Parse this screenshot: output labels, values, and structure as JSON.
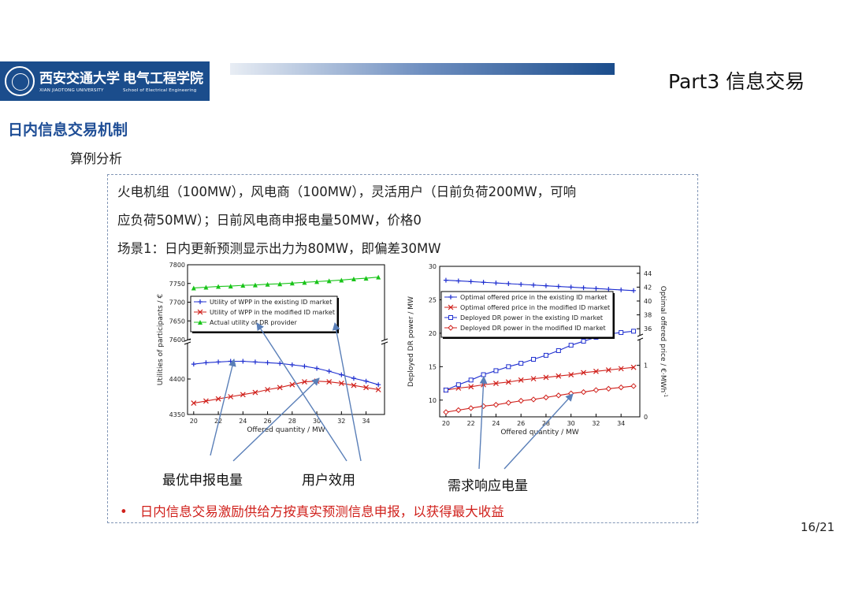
{
  "header": {
    "logo": {
      "school_cn": "西安交通大学",
      "school_en": "XIAN JIAOTONG UNIVERSITY",
      "college_cn": "电气工程学院",
      "college_en": "School of Electrical Engineering"
    },
    "part_title": "Part3 信息交易"
  },
  "section_title": "日内信息交易机制",
  "subtitle": "算例分析",
  "description": {
    "line1": "火电机组（100MW），风电商（100MW），灵活用户（日前负荷200MW，可响",
    "line2": "应负荷50MW）；日前风电商申报电量50MW，价格0",
    "line3": "场景1：日内更新预测显示出力为80MW，即偏差30MW"
  },
  "callouts": {
    "optimal_bid": "最优申报电量",
    "user_utility": "用户效用",
    "dr_quantity": "需求响应电量"
  },
  "bullet": "日内信息交易激励供给方按真实预测信息申报，以获得最大收益",
  "page_number": "16/21",
  "colors": {
    "brand_blue": "#1b4d8c",
    "section_blue": "#1f4e96",
    "bullet_red": "#d0201b",
    "frame_border": "#8296b6"
  },
  "chart_data": [
    {
      "type": "line",
      "xlabel": "Offered quantity / MW",
      "ylabel": "Utilities of participants / €",
      "x": [
        20,
        21,
        22,
        23,
        24,
        25,
        26,
        27,
        28,
        29,
        30,
        31,
        32,
        33,
        34,
        35
      ],
      "xticks": [
        20,
        22,
        24,
        26,
        28,
        30,
        32,
        34
      ],
      "upper_axis": {
        "ylim": [
          7600,
          7800
        ],
        "ticks": [
          7600,
          7650,
          7700,
          7750,
          7800
        ]
      },
      "lower_axis": {
        "ylim": [
          4350,
          4450
        ],
        "ticks": [
          4350,
          4400
        ]
      },
      "legend_position": "top-left",
      "series": [
        {
          "name": "Utility of WPP in the existing ID market",
          "color": "#1f2fd0",
          "marker": "plus",
          "axis": "lower",
          "values": [
            4421,
            4423,
            4424,
            4425,
            4425,
            4424,
            4423,
            4422,
            4420,
            4418,
            4415,
            4411,
            4406,
            4401,
            4397,
            4392
          ]
        },
        {
          "name": "Utility of WPP in the modified ID market",
          "color": "#d0201b",
          "marker": "x",
          "axis": "lower",
          "values": [
            4366,
            4369,
            4372,
            4375,
            4378,
            4381,
            4385,
            4388,
            4392,
            4396,
            4397,
            4396,
            4394,
            4391,
            4388,
            4385
          ]
        },
        {
          "name": "Actual utility of DR provider",
          "color": "#19c419",
          "marker": "triangle",
          "axis": "upper",
          "values": [
            7738,
            7740,
            7742,
            7743,
            7745,
            7746,
            7748,
            7749,
            7751,
            7753,
            7755,
            7757,
            7759,
            7762,
            7764,
            7767
          ]
        }
      ]
    },
    {
      "type": "line",
      "xlabel": "Offered quantity / MW",
      "ylabel": "Deployed DR power / MW",
      "y2label": "Optimal offered price / €·MWh",
      "x": [
        20,
        21,
        22,
        23,
        24,
        25,
        26,
        27,
        28,
        29,
        30,
        31,
        32,
        33,
        34,
        35
      ],
      "xticks": [
        20,
        22,
        24,
        26,
        28,
        30,
        32,
        34
      ],
      "left_axis": {
        "ylim": [
          7.5,
          30
        ],
        "ticks": [
          10,
          15,
          20,
          25,
          30
        ]
      },
      "right_axis_upper": {
        "ylim": [
          35,
          45
        ],
        "ticks": [
          36,
          38,
          40,
          42,
          44
        ]
      },
      "right_axis_lower": {
        "ylim": [
          0,
          1.5
        ],
        "ticks": [
          0,
          1
        ]
      },
      "legend_position": "top-left",
      "series": [
        {
          "name": "Optimal offered price in the existing ID market",
          "color": "#1f2fd0",
          "marker": "plus",
          "axis": "right_upper",
          "values": [
            43.0,
            42.9,
            42.8,
            42.7,
            42.6,
            42.5,
            42.4,
            42.3,
            42.2,
            42.1,
            42.0,
            41.9,
            41.8,
            41.7,
            41.6,
            41.5
          ]
        },
        {
          "name": "Optimal offered price in the modified ID market",
          "color": "#d0201b",
          "marker": "x",
          "axis": "left",
          "values": [
            11.5,
            11.8,
            12.0,
            12.3,
            12.5,
            12.7,
            13.0,
            13.2,
            13.4,
            13.6,
            13.8,
            14.1,
            14.3,
            14.5,
            14.7,
            14.9
          ]
        },
        {
          "name": "Deployed DR power in the existing ID market",
          "color": "#1f2fd0",
          "marker": "square",
          "axis": "left",
          "values": [
            11.5,
            12.3,
            13.0,
            13.8,
            14.4,
            15.0,
            15.5,
            16.1,
            16.7,
            17.4,
            18.2,
            18.8,
            19.4,
            19.9,
            20.1,
            20.3
          ]
        },
        {
          "name": "Deployed DR power in the modified ID market",
          "color": "#d0201b",
          "marker": "diamond",
          "axis": "left",
          "values": [
            8.2,
            8.5,
            8.8,
            9.1,
            9.3,
            9.6,
            9.9,
            10.1,
            10.4,
            10.7,
            11.0,
            11.2,
            11.5,
            11.7,
            11.9,
            12.1
          ]
        }
      ]
    }
  ]
}
